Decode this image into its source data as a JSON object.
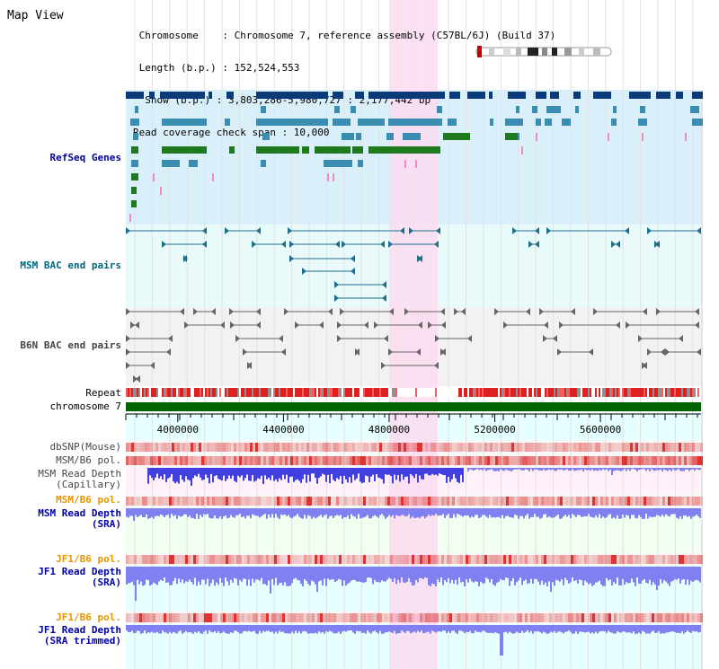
{
  "panel_title": "Map View",
  "header": {
    "chromosome_line": " Chromosome    : Chromosome 7, reference assembly (C57BL/6J) (Build 37)",
    "length_line": " Length (b.p.) : 152,524,553",
    "show_line": "  Show (b.p.) : 3,803,286-5,980,727 : 2,177,442 bp",
    "coverage_line": "Read coverage check span : 10,000"
  },
  "tracks": [
    {
      "id": "refseq",
      "label": "RefSeq Genes",
      "color": "#000099"
    },
    {
      "id": "msm_bac",
      "label": "MSM BAC end pairs",
      "color": "#006680"
    },
    {
      "id": "b6n_bac",
      "label": "B6N BAC end pairs",
      "color": "#444444"
    },
    {
      "id": "repeat",
      "label": "Repeat",
      "color": "#000000"
    },
    {
      "id": "chrom",
      "label": "chromosome 7",
      "color": "#000000"
    },
    {
      "id": "dbsnp",
      "label": "dbSNP(Mouse)",
      "color": "#444444"
    },
    {
      "id": "msm_pol1",
      "label": "MSM/B6 pol.",
      "color": "#444444"
    },
    {
      "id": "msm_cap",
      "label": "MSM Read Depth\n(Capillary)",
      "color": "#444444"
    },
    {
      "id": "msm_pol2",
      "label": "MSM/B6 pol.",
      "color": "#E69500"
    },
    {
      "id": "msm_sra",
      "label": "MSM Read Depth\n(SRA)",
      "color": "#0000AA"
    },
    {
      "id": "jf1_pol1",
      "label": "JF1/B6 pol.",
      "color": "#E69500"
    },
    {
      "id": "jf1_sra",
      "label": "JF1 Read Depth\n(SRA)",
      "color": "#0000AA"
    },
    {
      "id": "jf1_pol2",
      "label": "JF1/B6 pol.",
      "color": "#E69500"
    },
    {
      "id": "jf1_trim",
      "label": "JF1 Read Depth\n(SRA trimmed)",
      "color": "#0000AA"
    }
  ],
  "axis": {
    "ticks": [
      "4000000",
      "4400000",
      "4800000",
      "5200000",
      "5600000"
    ],
    "range_bp": [
      3803286,
      5980727
    ]
  },
  "highlight_region_bp": [
    4800000,
    4980000
  ],
  "colors": {
    "refseq_bg": "#D9F0FA",
    "msm_bac_bg": "#E8FAFA",
    "b6n_bac_bg": "#F2F2F2",
    "highlight": "#FADCF0",
    "chrom_bar": "#006400",
    "gene_dark": "#0A3A78",
    "gene_mid": "#3A8CB0",
    "gene_green": "#1F7A1F",
    "gene_pink": "#F08CC0",
    "depth_blue": "#4040E0",
    "depth_light": "#8080F0"
  }
}
